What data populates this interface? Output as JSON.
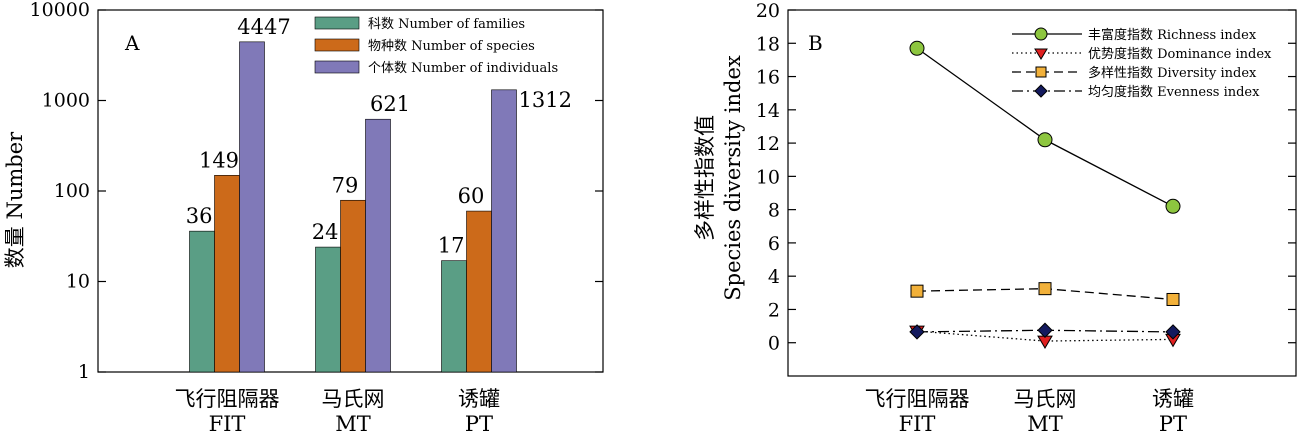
{
  "chart_data": [
    {
      "type": "bar",
      "panel_label": "A",
      "ylabel": "数量 Number",
      "yscale": "log",
      "ylim": [
        1,
        10000
      ],
      "yticks": [
        "1",
        "10",
        "100",
        "1000",
        "10000"
      ],
      "categories": [
        {
          "zh": "飞行阻隔器",
          "en": "FIT"
        },
        {
          "zh": "马氏网",
          "en": "MT"
        },
        {
          "zh": "诱罐",
          "en": "PT"
        }
      ],
      "series": [
        {
          "name": "科数 Number of families",
          "color": "#5a9e85",
          "values": [
            36,
            24,
            17
          ],
          "labels": [
            "36",
            "24",
            "17"
          ]
        },
        {
          "name": "物种数 Number of species",
          "color": "#cc6a1a",
          "values": [
            149,
            79,
            60
          ],
          "labels": [
            "149",
            "79",
            "60"
          ]
        },
        {
          "name": "个体数 Number of individuals",
          "color": "#8079b8",
          "values": [
            4447,
            621,
            1312
          ],
          "labels": [
            "4447",
            "621",
            "1312"
          ]
        }
      ],
      "legend_position": "top-right",
      "grid": false
    },
    {
      "type": "line",
      "panel_label": "B",
      "ylabel_zh": "多样性指数值",
      "ylabel_en": "Species diversity index",
      "ylim": [
        -2,
        20
      ],
      "yticks": [
        "0",
        "2",
        "4",
        "6",
        "8",
        "10",
        "12",
        "14",
        "16",
        "18",
        "20"
      ],
      "categories": [
        {
          "zh": "飞行阻隔器",
          "en": "FIT"
        },
        {
          "zh": "马氏网",
          "en": "MT"
        },
        {
          "zh": "诱罐",
          "en": "PT"
        }
      ],
      "series": [
        {
          "name": "丰富度指数 Richness index",
          "color": "#8dc63f",
          "marker": "circle",
          "line": "solid",
          "values": [
            17.7,
            12.2,
            8.2
          ]
        },
        {
          "name": "优势度指数 Dominance index",
          "color": "#e02020",
          "marker": "triangle-down",
          "line": "dotted",
          "values": [
            0.7,
            0.1,
            0.2
          ]
        },
        {
          "name": "多样性指数 Diversity index",
          "color": "#f2b13a",
          "marker": "square",
          "line": "dashed",
          "values": [
            3.1,
            3.25,
            2.6
          ]
        },
        {
          "name": "均匀度指数 Evenness index",
          "color": "#141a5e",
          "marker": "diamond",
          "line": "dashdot",
          "values": [
            0.65,
            0.75,
            0.65
          ]
        }
      ],
      "legend_position": "top-right",
      "grid": false
    }
  ]
}
